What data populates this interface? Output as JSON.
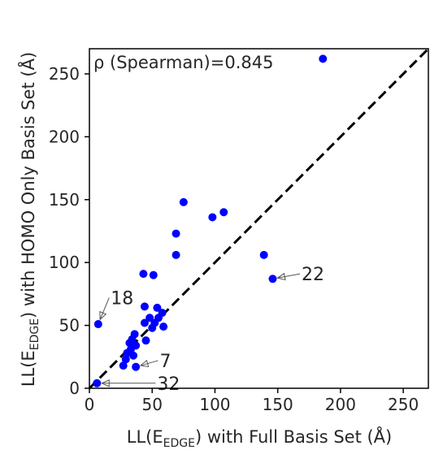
{
  "chart_data": {
    "type": "scatter",
    "xlabel": {
      "pre": "LL(E",
      "sub": "EDGE",
      "post": ") with Full Basis Set (Å)"
    },
    "ylabel": {
      "pre": "LL(E",
      "sub": "EDGE",
      "post": ") with HOMO Only Basis Set (Å)"
    },
    "xlim": [
      0,
      270
    ],
    "ylim": [
      0,
      270
    ],
    "xticks": [
      0,
      50,
      100,
      150,
      200,
      250
    ],
    "yticks": [
      0,
      50,
      100,
      150,
      200,
      250
    ],
    "reference_line": {
      "from": [
        0,
        0
      ],
      "to": [
        270,
        270
      ],
      "style": "dashed",
      "color": "#000000"
    },
    "correlation_text": "ρ (Spearman)=0.845",
    "point_color": "#0000ff",
    "points": [
      {
        "x": 6,
        "y": 4
      },
      {
        "x": 7,
        "y": 51
      },
      {
        "x": 27,
        "y": 18
      },
      {
        "x": 29,
        "y": 23
      },
      {
        "x": 30,
        "y": 28
      },
      {
        "x": 32,
        "y": 36
      },
      {
        "x": 33,
        "y": 31
      },
      {
        "x": 34,
        "y": 39
      },
      {
        "x": 35,
        "y": 26
      },
      {
        "x": 36,
        "y": 43
      },
      {
        "x": 37,
        "y": 17
      },
      {
        "x": 37,
        "y": 34
      },
      {
        "x": 43,
        "y": 91
      },
      {
        "x": 44,
        "y": 65
      },
      {
        "x": 44,
        "y": 52
      },
      {
        "x": 45,
        "y": 38
      },
      {
        "x": 48,
        "y": 56
      },
      {
        "x": 50,
        "y": 48
      },
      {
        "x": 51,
        "y": 90
      },
      {
        "x": 52,
        "y": 52
      },
      {
        "x": 54,
        "y": 64
      },
      {
        "x": 55,
        "y": 56
      },
      {
        "x": 58,
        "y": 60
      },
      {
        "x": 59,
        "y": 49
      },
      {
        "x": 69,
        "y": 123
      },
      {
        "x": 69,
        "y": 106
      },
      {
        "x": 75,
        "y": 148
      },
      {
        "x": 98,
        "y": 136
      },
      {
        "x": 107,
        "y": 140
      },
      {
        "x": 139,
        "y": 106
      },
      {
        "x": 146,
        "y": 87
      },
      {
        "x": 186,
        "y": 262
      }
    ],
    "annotations": [
      {
        "text": "18",
        "point": [
          7,
          51
        ],
        "label_pos": [
          17,
          72
        ]
      },
      {
        "text": "22",
        "point": [
          146,
          87
        ],
        "label_pos": [
          169,
          91
        ]
      },
      {
        "text": "7",
        "point": [
          37,
          17
        ],
        "label_pos": [
          56,
          22
        ]
      },
      {
        "text": "32",
        "point": [
          6,
          4
        ],
        "label_pos": [
          54,
          4
        ]
      }
    ]
  }
}
